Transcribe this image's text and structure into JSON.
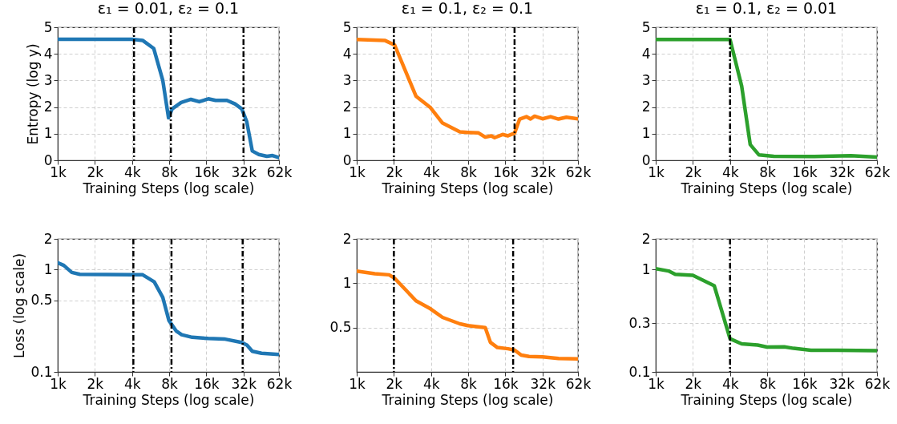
{
  "chart_data": [
    {
      "type": "line",
      "title": "ε₁ = 0.01,  ε₂ = 0.1",
      "xlabel": "Training Steps (log scale)",
      "ylabel": "Entropy (log y)",
      "log": "x",
      "grid": true,
      "line_style": "solid",
      "xlim": [
        1000,
        62000
      ],
      "xticks": [
        {
          "value": 1000,
          "label": "1k"
        },
        {
          "value": 2000,
          "label": "2k"
        },
        {
          "value": 4000,
          "label": "4k"
        },
        {
          "value": 8000,
          "label": "8k"
        },
        {
          "value": 16000,
          "label": "16k"
        },
        {
          "value": 32000,
          "label": "32k"
        },
        {
          "value": 62000,
          "label": "62k"
        }
      ],
      "ylim": [
        0,
        5
      ],
      "yticks": [
        0,
        1,
        2,
        3,
        4,
        5
      ],
      "x": [
        1000,
        2000,
        4000,
        4900,
        6000,
        7100,
        7900,
        8450,
        10000,
        12000,
        14000,
        16600,
        19000,
        23500,
        27300,
        31000,
        34000,
        37700,
        42600,
        49500,
        55000,
        62000
      ],
      "series": [
        {
          "color": "#1f77b4",
          "values": [
            4.55,
            4.55,
            4.55,
            4.5,
            4.2,
            3.0,
            1.6,
            1.93,
            2.17,
            2.29,
            2.2,
            2.31,
            2.25,
            2.25,
            2.12,
            1.93,
            1.45,
            0.35,
            0.22,
            0.15,
            0.18,
            0.1
          ]
        }
      ],
      "ref_lines": [
        {
          "axis": "x",
          "value": 4150,
          "color": "#000000",
          "line_style": "dashed"
        },
        {
          "axis": "x",
          "value": 8250,
          "color": "#000000",
          "line_style": "dashed"
        },
        {
          "axis": "x",
          "value": 32000,
          "color": "#000000",
          "line_style": "dashed"
        }
      ]
    },
    {
      "type": "line",
      "title": "ε₁ = 0.1,  ε₂ = 0.1",
      "xlabel": "Training Steps (log scale)",
      "log": "x",
      "grid": true,
      "line_style": "solid",
      "xlim": [
        1000,
        62000
      ],
      "xticks": [
        {
          "value": 1000,
          "label": "1k"
        },
        {
          "value": 2000,
          "label": "2k"
        },
        {
          "value": 4000,
          "label": "4k"
        },
        {
          "value": 8000,
          "label": "8k"
        },
        {
          "value": 16000,
          "label": "16k"
        },
        {
          "value": 32000,
          "label": "32k"
        },
        {
          "value": 62000,
          "label": "62k"
        }
      ],
      "ylim": [
        0,
        5
      ],
      "yticks": [
        0,
        1,
        2,
        3,
        4,
        5
      ],
      "x": [
        1000,
        1700,
        2030,
        3020,
        3960,
        4960,
        6850,
        7950,
        9700,
        11000,
        12300,
        13100,
        15200,
        16800,
        19000,
        20900,
        23700,
        25600,
        27600,
        32000,
        37200,
        43100,
        50000,
        62000
      ],
      "series": [
        {
          "color": "#ff7f0e",
          "values": [
            4.54,
            4.5,
            4.33,
            2.41,
            1.98,
            1.4,
            1.07,
            1.05,
            1.03,
            0.87,
            0.92,
            0.85,
            0.97,
            0.92,
            1.02,
            1.55,
            1.64,
            1.55,
            1.66,
            1.56,
            1.64,
            1.55,
            1.62,
            1.56
          ]
        }
      ],
      "ref_lines": [
        {
          "axis": "x",
          "value": 2000,
          "color": "#000000",
          "line_style": "dashed"
        },
        {
          "axis": "x",
          "value": 19000,
          "color": "#000000",
          "line_style": "dashed"
        }
      ]
    },
    {
      "type": "line",
      "title": "ε₁ = 0.1,  ε₂ = 0.01",
      "xlabel": "Training Steps (log scale)",
      "log": "x",
      "grid": true,
      "line_style": "solid",
      "xlim": [
        1000,
        62000
      ],
      "xticks": [
        {
          "value": 1000,
          "label": "1k"
        },
        {
          "value": 2000,
          "label": "2k"
        },
        {
          "value": 4000,
          "label": "4k"
        },
        {
          "value": 8000,
          "label": "8k"
        },
        {
          "value": 16000,
          "label": "16k"
        },
        {
          "value": 32000,
          "label": "32k"
        },
        {
          "value": 62000,
          "label": "62k"
        }
      ],
      "ylim": [
        0,
        5
      ],
      "yticks": [
        0,
        1,
        2,
        3,
        4,
        5
      ],
      "x": [
        1000,
        4000,
        4970,
        5830,
        6870,
        9030,
        18100,
        38100,
        62000
      ],
      "series": [
        {
          "color": "#2ca02c",
          "values": [
            4.54,
            4.54,
            2.79,
            0.59,
            0.2,
            0.15,
            0.14,
            0.17,
            0.12
          ]
        }
      ],
      "ref_lines": [
        {
          "axis": "x",
          "value": 4000,
          "color": "#000000",
          "line_style": "dashed"
        }
      ]
    },
    {
      "type": "line",
      "xlabel": "Training Steps (log scale)",
      "ylabel": "Loss (log scale)",
      "log": "xy",
      "grid": true,
      "line_style": "solid",
      "xlim": [
        1000,
        62000
      ],
      "xticks": [
        {
          "value": 1000,
          "label": "1k"
        },
        {
          "value": 2000,
          "label": "2k"
        },
        {
          "value": 4000,
          "label": "4k"
        },
        {
          "value": 8000,
          "label": "8k"
        },
        {
          "value": 16000,
          "label": "16k"
        },
        {
          "value": 32000,
          "label": "32k"
        },
        {
          "value": 62000,
          "label": "62k"
        }
      ],
      "ylim": [
        0.1,
        2
      ],
      "yticks": [
        0.1,
        0.5,
        1,
        2
      ],
      "x": [
        1000,
        1120,
        1300,
        1510,
        4000,
        4880,
        6050,
        7100,
        7960,
        9100,
        10100,
        12300,
        16600,
        22300,
        30900,
        34100,
        37700,
        44800,
        62000
      ],
      "series": [
        {
          "color": "#1f77b4",
          "values": [
            1.17,
            1.1,
            0.94,
            0.9,
            0.89,
            0.89,
            0.76,
            0.535,
            0.318,
            0.252,
            0.231,
            0.218,
            0.212,
            0.21,
            0.194,
            0.183,
            0.159,
            0.152,
            0.148
          ]
        }
      ],
      "ref_lines": [
        {
          "axis": "x",
          "value": 4100,
          "color": "#000000",
          "line_style": "dashed"
        },
        {
          "axis": "x",
          "value": 8350,
          "color": "#000000",
          "line_style": "dashed"
        },
        {
          "axis": "x",
          "value": 31500,
          "color": "#000000",
          "line_style": "dashed"
        }
      ]
    },
    {
      "type": "line",
      "xlabel": "Training Steps (log scale)",
      "log": "xy",
      "grid": true,
      "line_style": "solid",
      "xlim": [
        1000,
        62000
      ],
      "xticks": [
        {
          "value": 1000,
          "label": "1k"
        },
        {
          "value": 2000,
          "label": "2k"
        },
        {
          "value": 4000,
          "label": "4k"
        },
        {
          "value": 8000,
          "label": "8k"
        },
        {
          "value": 16000,
          "label": "16k"
        },
        {
          "value": 32000,
          "label": "32k"
        },
        {
          "value": 62000,
          "label": "62k"
        }
      ],
      "ylim": [
        0.25,
        2
      ],
      "yticks": [
        0.5,
        1,
        2
      ],
      "x": [
        1000,
        1400,
        1830,
        2030,
        3020,
        3960,
        4960,
        6850,
        7950,
        11000,
        12100,
        13800,
        16800,
        19000,
        21500,
        24900,
        32000,
        43100,
        62000
      ],
      "series": [
        {
          "color": "#ff7f0e",
          "values": [
            1.21,
            1.16,
            1.14,
            1.08,
            0.76,
            0.67,
            0.586,
            0.53,
            0.515,
            0.5,
            0.397,
            0.366,
            0.359,
            0.352,
            0.325,
            0.318,
            0.316,
            0.308,
            0.306
          ]
        }
      ],
      "ref_lines": [
        {
          "axis": "x",
          "value": 2000,
          "color": "#000000",
          "line_style": "dashed"
        },
        {
          "axis": "x",
          "value": 18500,
          "color": "#000000",
          "line_style": "dashed"
        }
      ]
    },
    {
      "type": "line",
      "xlabel": "Training Steps (log scale)",
      "log": "xy",
      "grid": true,
      "line_style": "solid",
      "xlim": [
        1000,
        62000
      ],
      "xticks": [
        {
          "value": 1000,
          "label": "1k"
        },
        {
          "value": 2000,
          "label": "2k"
        },
        {
          "value": 4000,
          "label": "4k"
        },
        {
          "value": 8000,
          "label": "8k"
        },
        {
          "value": 16000,
          "label": "16k"
        },
        {
          "value": 32000,
          "label": "32k"
        },
        {
          "value": 62000,
          "label": "62k"
        }
      ],
      "ylim": [
        0.1,
        2
      ],
      "yticks": [
        0.1,
        0.3,
        1,
        2
      ],
      "x": [
        1000,
        1270,
        1440,
        2000,
        2980,
        4000,
        4970,
        6700,
        7970,
        11000,
        13100,
        18100,
        29700,
        62000
      ],
      "series": [
        {
          "color": "#2ca02c",
          "values": [
            1.02,
            0.97,
            0.9,
            0.88,
            0.696,
            0.211,
            0.188,
            0.183,
            0.175,
            0.176,
            0.17,
            0.163,
            0.163,
            0.161
          ]
        }
      ],
      "ref_lines": [
        {
          "axis": "x",
          "value": 4000,
          "color": "#000000",
          "line_style": "dashed"
        }
      ]
    }
  ]
}
